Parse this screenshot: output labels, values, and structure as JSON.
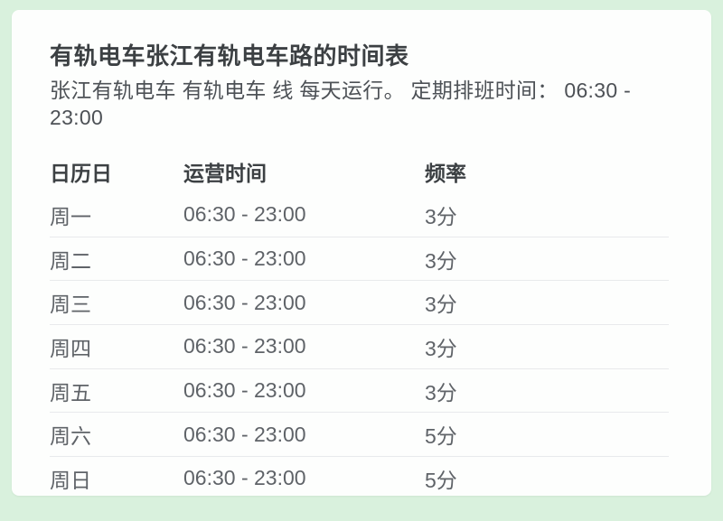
{
  "theme": {
    "background_color": "#d9f1dd",
    "card_color": "#fdfefd",
    "divider_color": "#e8eaec",
    "title_color": "#3c4043",
    "body_text_color": "#5f6368"
  },
  "schedule": {
    "title": "有轨电车张江有轨电车路的时间表",
    "subtitle": "张江有轨电车 有轨电车 线 每天运行。 定期排班时间： 06:30 - 23:00",
    "regular_hours": "06:30 - 23:00",
    "table": {
      "headers": {
        "day": "日历日",
        "hours": "运营时间",
        "frequency": "频率"
      },
      "rows": [
        {
          "day": "周一",
          "hours": "06:30 - 23:00",
          "frequency": "3分"
        },
        {
          "day": "周二",
          "hours": "06:30 - 23:00",
          "frequency": "3分"
        },
        {
          "day": "周三",
          "hours": "06:30 - 23:00",
          "frequency": "3分"
        },
        {
          "day": "周四",
          "hours": "06:30 - 23:00",
          "frequency": "3分"
        },
        {
          "day": "周五",
          "hours": "06:30 - 23:00",
          "frequency": "3分"
        },
        {
          "day": "周六",
          "hours": "06:30 - 23:00",
          "frequency": "5分"
        },
        {
          "day": "周日",
          "hours": "06:30 - 23:00",
          "frequency": "5分"
        }
      ]
    }
  }
}
